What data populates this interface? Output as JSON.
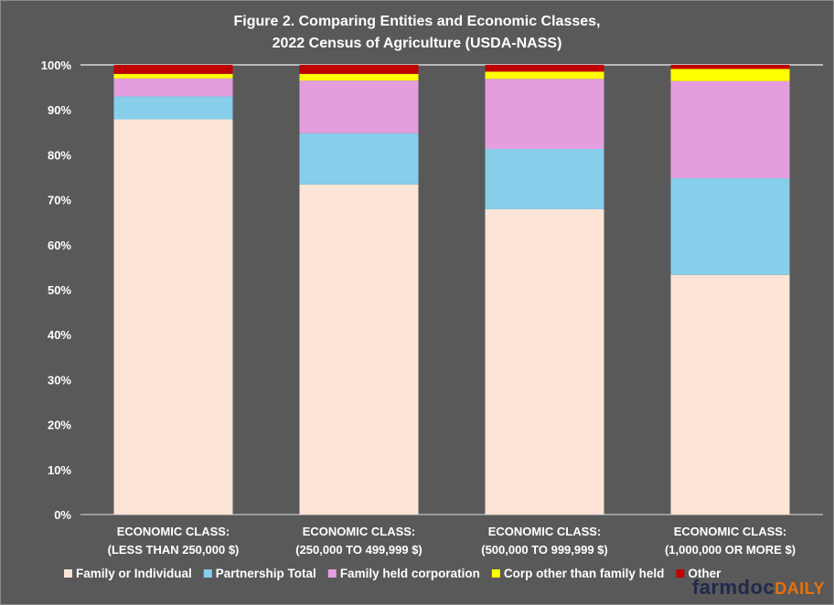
{
  "chart_data": {
    "type": "bar",
    "stacked": true,
    "title": "Figure 2. Comparing Entities and Economic Classes,",
    "subtitle": "2022 Census of Agriculture (USDA-NASS)",
    "categories": [
      [
        "ECONOMIC CLASS:",
        "(LESS THAN 250,000 $)"
      ],
      [
        "ECONOMIC CLASS:",
        "(250,000 TO 499,999 $)"
      ],
      [
        "ECONOMIC CLASS:",
        "(500,000 TO 999,999 $)"
      ],
      [
        "ECONOMIC CLASS:",
        "(1,000,000 OR MORE $)"
      ]
    ],
    "series": [
      {
        "name": "Family or Individual",
        "color": "#fce4d6",
        "values": [
          87.9,
          73.4,
          67.9,
          53.3
        ]
      },
      {
        "name": "Partnership Total",
        "color": "#87ceeb",
        "values": [
          5.1,
          11.4,
          13.4,
          21.5
        ]
      },
      {
        "name": "Family held corporation",
        "color": "#e49edd",
        "values": [
          4.0,
          11.7,
          15.6,
          21.6
        ]
      },
      {
        "name": "Corp other than family held",
        "color": "#ffff00",
        "values": [
          1.0,
          1.5,
          1.6,
          2.7
        ]
      },
      {
        "name": "Other",
        "color": "#c00000",
        "values": [
          2.0,
          2.0,
          1.5,
          0.9
        ]
      }
    ],
    "ylim": [
      0,
      100
    ],
    "yticks": [
      "0%",
      "10%",
      "20%",
      "30%",
      "40%",
      "50%",
      "60%",
      "70%",
      "80%",
      "90%",
      "100%"
    ],
    "xlabel": "",
    "ylabel": "",
    "legend": "bottom"
  },
  "logo": {
    "part1": "farmdoc",
    "part2": "DAILY"
  }
}
